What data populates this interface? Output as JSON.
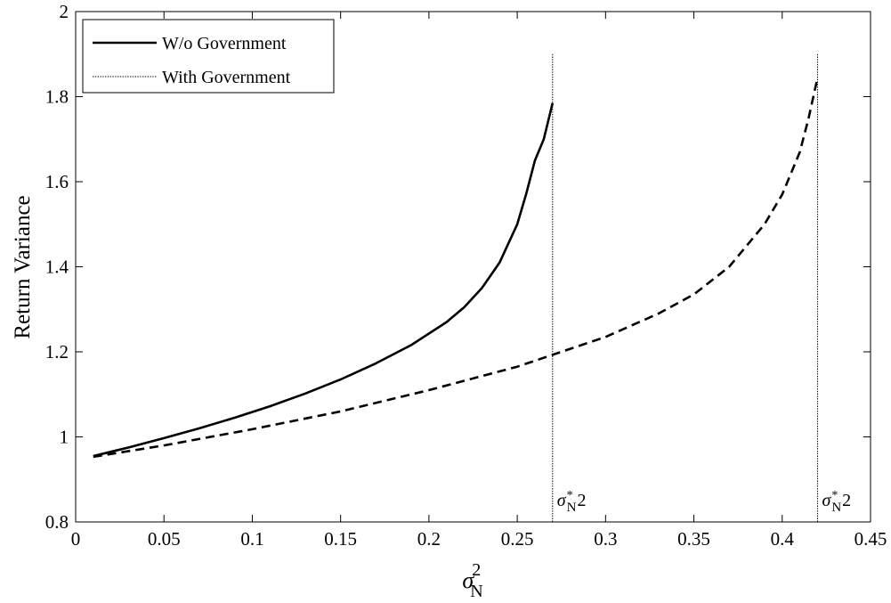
{
  "chart_data": {
    "type": "line",
    "xlabel_base": "σ",
    "xlabel_sub": "N",
    "xlabel_sup": "2",
    "ylabel": "Return Variance",
    "xlim": [
      0,
      0.45
    ],
    "ylim": [
      0.8,
      2
    ],
    "xticks": [
      0,
      0.05,
      0.1,
      0.15,
      0.2,
      0.25,
      0.3,
      0.35,
      0.4,
      0.45
    ],
    "xtick_labels": [
      "0",
      "0.05",
      "0.1",
      "0.15",
      "0.2",
      "0.25",
      "0.3",
      "0.35",
      "0.4",
      "0.45"
    ],
    "yticks": [
      0.8,
      1.0,
      1.2,
      1.4,
      1.6,
      1.8,
      2.0
    ],
    "ytick_labels": [
      "0.8",
      "1",
      "1.2",
      "1.4",
      "1.6",
      "1.8",
      "2"
    ],
    "grid": false,
    "legend_position": "top-left",
    "series": [
      {
        "name": "W/o Government",
        "style": "solid",
        "color": "#000000",
        "x": [
          0.01,
          0.03,
          0.05,
          0.07,
          0.09,
          0.11,
          0.13,
          0.15,
          0.17,
          0.19,
          0.21,
          0.22,
          0.23,
          0.24,
          0.25,
          0.255,
          0.26,
          0.265,
          0.27
        ],
        "y": [
          0.955,
          0.975,
          0.997,
          1.02,
          1.045,
          1.072,
          1.102,
          1.135,
          1.173,
          1.216,
          1.27,
          1.305,
          1.35,
          1.41,
          1.5,
          1.57,
          1.65,
          1.7,
          1.785
        ]
      },
      {
        "name": "",
        "style": "dashed",
        "color": "#000000",
        "x": [
          0.01,
          0.05,
          0.1,
          0.15,
          0.2,
          0.25,
          0.3,
          0.33,
          0.35,
          0.37,
          0.39,
          0.4,
          0.41,
          0.415,
          0.42
        ],
        "y": [
          0.953,
          0.98,
          1.018,
          1.06,
          1.11,
          1.165,
          1.235,
          1.29,
          1.335,
          1.4,
          1.5,
          1.57,
          1.67,
          1.75,
          1.845
        ]
      },
      {
        "name": "With Government",
        "style": "dotted",
        "color": "#000000",
        "vlines": [
          0.27,
          0.42
        ]
      }
    ],
    "annotations": [
      {
        "x": 0.27,
        "base": "σ",
        "sup": "*",
        "sub": "N",
        "suffix": "2"
      },
      {
        "x": 0.42,
        "base": "σ",
        "sup": "*",
        "sub": "N",
        "suffix": "2"
      }
    ]
  }
}
